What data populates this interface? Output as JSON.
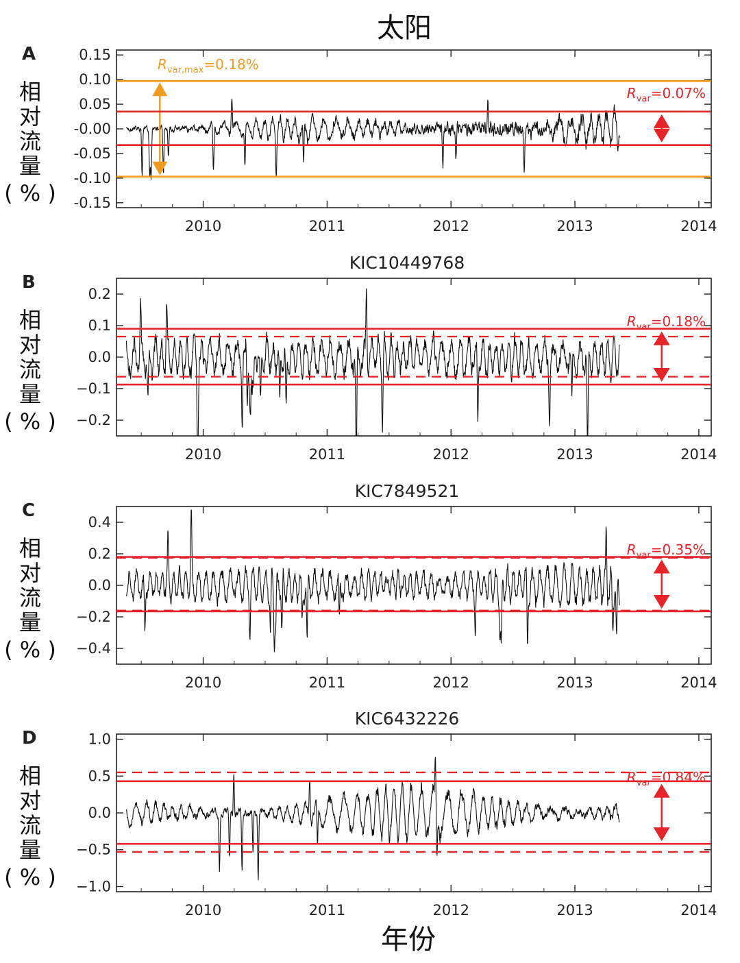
{
  "chart_data": {
    "title": "太阳",
    "xlabel": "年份",
    "ylabel": "相对流量（%）",
    "type": "line",
    "x_range": [
      2009.3,
      2014.1
    ],
    "x_ticks": [
      "2010",
      "2011",
      "2012",
      "2013",
      "2014"
    ],
    "x_tick_values": [
      2010,
      2011,
      2012,
      2013,
      2014
    ],
    "colors": {
      "series": "#111111",
      "rvar": "#e5252a",
      "rvar_max": "#f29a1f"
    },
    "panels": [
      {
        "letter": "A",
        "title": "",
        "ylim": [
          -0.16,
          0.16
        ],
        "y_ticks": [
          0.15,
          0.1,
          0.05,
          -0.0,
          -0.05,
          -0.1,
          -0.15
        ],
        "y_tick_labels": [
          "0.15",
          "0.10",
          "0.05",
          "-0.00",
          "-0.05",
          "-0.10",
          "-0.15"
        ],
        "rvar_main": "R",
        "rvar_sub": "var",
        "rvar_value": "=0.07%",
        "rvar_lines_solid": [
          0.035,
          -0.033
        ],
        "rvar_lines_dashed": [],
        "rvar_max_main": "R",
        "rvar_max_sub": "var,max",
        "rvar_max_value": "=0.18%",
        "rvar_max_lines": [
          0.097,
          -0.097
        ],
        "series": {
          "name": "太阳",
          "x_start": 2009.38,
          "x_end": 2013.36,
          "noise_start": 0.008,
          "noise_end": 0.03,
          "osc_start": 0.0,
          "osc_end": 0.04,
          "osc_period": 0.075,
          "spike_count": 14,
          "spike_scale": 0.1,
          "seed": 11
        }
      },
      {
        "letter": "B",
        "title": "KIC10449768",
        "ylim": [
          -0.25,
          0.25
        ],
        "y_ticks": [
          0.2,
          0.1,
          0.0,
          -0.1,
          -0.2
        ],
        "y_tick_labels": [
          "0.2",
          "0.1",
          "0.0",
          "−0.1",
          "−0.2"
        ],
        "rvar_main": "R",
        "rvar_sub": "var",
        "rvar_value": "=0.18%",
        "rvar_lines_solid": [
          0.09,
          -0.087
        ],
        "rvar_lines_dashed": [
          0.065,
          -0.062
        ],
        "series": {
          "name": "KIC10449768",
          "x_start": 2009.38,
          "x_end": 2013.36,
          "noise_start": 0.045,
          "noise_end": 0.04,
          "osc_start": 0.06,
          "osc_end": 0.06,
          "osc_period": 0.06,
          "spike_count": 22,
          "spike_scale": 0.22,
          "seed": 23
        }
      },
      {
        "letter": "C",
        "title": "KIC7849521",
        "ylim": [
          -0.5,
          0.5
        ],
        "y_ticks": [
          0.4,
          0.2,
          0.0,
          -0.2,
          -0.4
        ],
        "y_tick_labels": [
          "0.4",
          "0.2",
          "0.0",
          "−0.2",
          "−0.4"
        ],
        "rvar_main": "R",
        "rvar_sub": "var",
        "rvar_value": "=0.35%",
        "rvar_lines_solid": [
          0.18,
          -0.165
        ],
        "rvar_lines_dashed": [
          0.175,
          -0.16
        ],
        "series": {
          "name": "KIC7849521",
          "x_start": 2009.38,
          "x_end": 2013.36,
          "noise_start": 0.06,
          "noise_end": 0.07,
          "osc_start": 0.08,
          "osc_end": 0.14,
          "osc_period": 0.055,
          "spike_count": 18,
          "spike_scale": 0.44,
          "seed": 37
        }
      },
      {
        "letter": "D",
        "title": "KIC6432226",
        "ylim": [
          -1.07,
          1.07
        ],
        "y_ticks": [
          1.0,
          0.5,
          0.0,
          -0.5,
          -1.0
        ],
        "y_tick_labels": [
          "1.0",
          "0.5",
          "0.0",
          "−0.5",
          "−1.0"
        ],
        "rvar_main": "R",
        "rvar_sub": "var",
        "rvar_value": "=0.84%",
        "rvar_lines_solid": [
          0.43,
          -0.42
        ],
        "rvar_lines_dashed": [
          0.55,
          -0.53
        ],
        "series": {
          "name": "KIC6432226",
          "x_start": 2009.38,
          "x_end": 2013.36,
          "noise_start": 0.08,
          "noise_end": 0.1,
          "osc_start": 0.05,
          "osc_end": 0.55,
          "osc_period": 0.085,
          "spike_count": 10,
          "spike_scale": 0.9,
          "seed": 53
        }
      }
    ]
  }
}
